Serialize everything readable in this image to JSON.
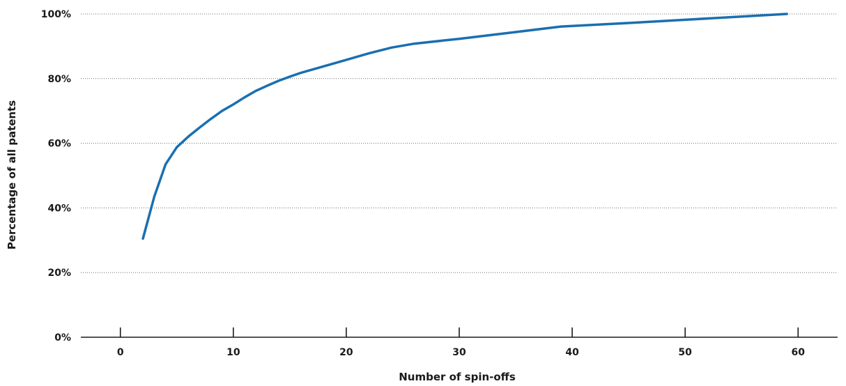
{
  "chart_data": {
    "type": "line",
    "xlabel": "Number of spin-offs",
    "ylabel": "Percentage of all patents",
    "xlim": [
      -3.5,
      63.5
    ],
    "ylim": [
      0,
      100
    ],
    "x_ticks": [
      0,
      10,
      20,
      30,
      40,
      50,
      60
    ],
    "y_ticks": [
      0,
      20,
      40,
      60,
      80,
      100
    ],
    "x_tick_labels": [
      "0",
      "10",
      "20",
      "30",
      "40",
      "50",
      "60"
    ],
    "y_tick_labels": [
      "0%",
      "20%",
      "40%",
      "60%",
      "80%",
      "100%"
    ],
    "grid": "horizontal dotted",
    "series": [
      {
        "color": "#1a6fb0",
        "x": [
          2,
          3,
          4,
          5,
          6,
          7,
          8,
          9,
          10,
          11,
          12,
          13,
          14,
          15,
          16,
          18,
          20,
          22,
          24,
          26,
          30,
          35,
          39,
          45,
          50,
          55,
          59
        ],
        "y": [
          30.5,
          43.5,
          53.5,
          58.8,
          62,
          64.8,
          67.5,
          70,
          72,
          74.2,
          76.2,
          77.8,
          79.3,
          80.6,
          81.8,
          83.8,
          85.8,
          87.8,
          89.6,
          90.8,
          92.3,
          94.4,
          96.1,
          97.2,
          98.2,
          99.2,
          100
        ]
      }
    ]
  }
}
